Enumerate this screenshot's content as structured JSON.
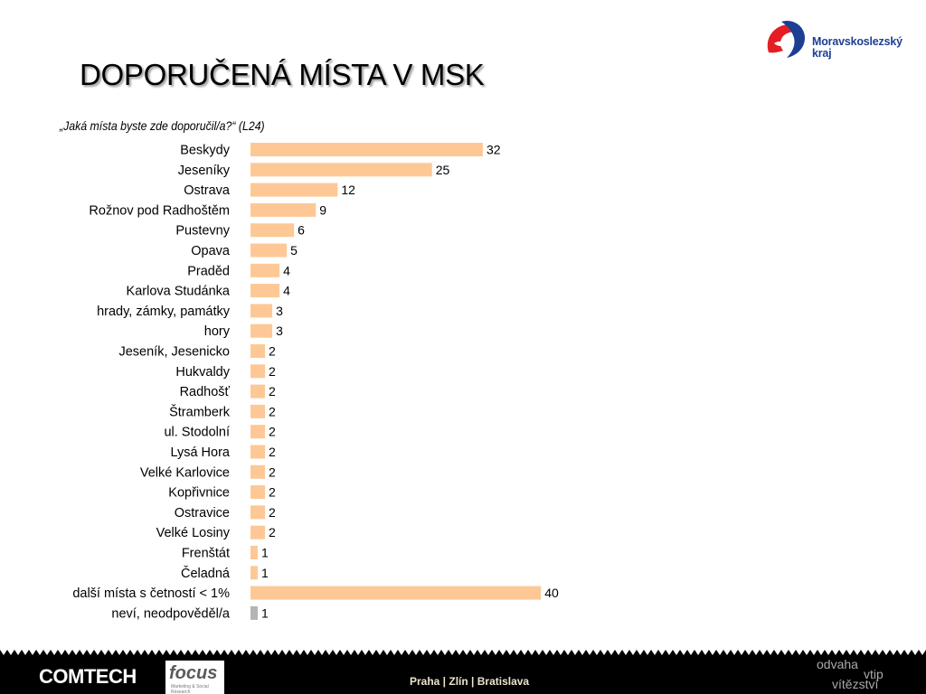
{
  "logo": {
    "text_line1": "Moravskoslezský",
    "text_line2": "kraj"
  },
  "title": "DOPORUČENÁ MÍSTA V MSK",
  "question": "„Jaká místa byste zde doporučil/a?“ (L24)",
  "colors": {
    "bar": "#fdc896",
    "bar_gray": "#b4b4b4",
    "accent_red": "#e31e24",
    "accent_blue": "#1c3f94"
  },
  "chart_data": {
    "type": "bar",
    "orientation": "horizontal",
    "title": "",
    "xlabel": "",
    "ylabel": "",
    "categories": [
      "Beskydy",
      "Jeseníky",
      "Ostrava",
      "Rožnov pod Radhoštěm",
      "Pustevny",
      "Opava",
      "Praděd",
      "Karlova Studánka",
      "hrady, zámky, památky",
      "hory",
      "Jeseník, Jesenicko",
      "Hukvaldy",
      "Radhošť",
      "Štramberk",
      "ul. Stodolní",
      "Lysá Hora",
      "Velké Karlovice",
      "Kopřivnice",
      "Ostravice",
      "Velké Losiny",
      "Frenštát",
      "Čeladná",
      "další místa s četností < 1%",
      "neví, neodpověděl/a"
    ],
    "values": [
      32,
      25,
      12,
      9,
      6,
      5,
      4,
      4,
      3,
      3,
      2,
      2,
      2,
      2,
      2,
      2,
      2,
      2,
      2,
      2,
      1,
      1,
      40,
      1
    ],
    "bar_colors": [
      "#fdc896",
      "#fdc896",
      "#fdc896",
      "#fdc896",
      "#fdc896",
      "#fdc896",
      "#fdc896",
      "#fdc896",
      "#fdc896",
      "#fdc896",
      "#fdc896",
      "#fdc896",
      "#fdc896",
      "#fdc896",
      "#fdc896",
      "#fdc896",
      "#fdc896",
      "#fdc896",
      "#fdc896",
      "#fdc896",
      "#fdc896",
      "#fdc896",
      "#fdc896",
      "#b4b4b4"
    ],
    "xlim": [
      0,
      40
    ],
    "grid": false,
    "legend": "none",
    "data_labels": true
  },
  "footer": {
    "comtech": "COMTECH",
    "focus": "focus",
    "focus_sub": "Marketing & Social Research",
    "cities": "Praha | Zlín | Bratislava",
    "slogan_1": "odvaha",
    "slogan_2": "vtip",
    "slogan_3": "vítězství"
  }
}
